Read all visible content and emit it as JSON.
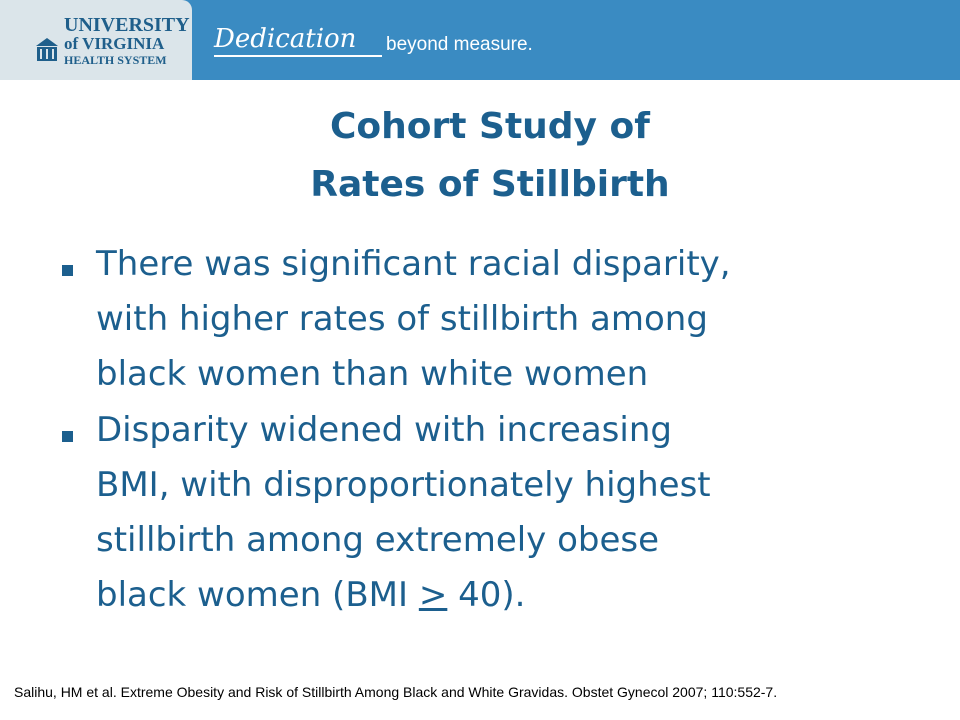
{
  "header": {
    "logo": [
      "UNIVERSITY",
      "of VIRGINIA",
      "HEALTH SYSTEM"
    ],
    "tagline_script": "Dedication",
    "tagline": "beyond measure."
  },
  "title": [
    "Cohort Study of",
    "Rates of Stillbirth"
  ],
  "bullets": [
    {
      "lines": [
        "There was significant racial disparity,",
        "with higher rates of stillbirth among",
        "black women than white women"
      ]
    },
    {
      "lines": [
        "Disparity widened with increasing",
        "BMI, with disproportionately highest",
        "stillbirth among extremely obese",
        "black women (BMI "
      ],
      "symbol": ">",
      "tail": " 40)."
    }
  ],
  "citation": "Salihu, HM et al. Extreme Obesity and Risk of Stillbirth Among Black and White Gravidas. Obstet Gynecol 2007; 110:552-7."
}
